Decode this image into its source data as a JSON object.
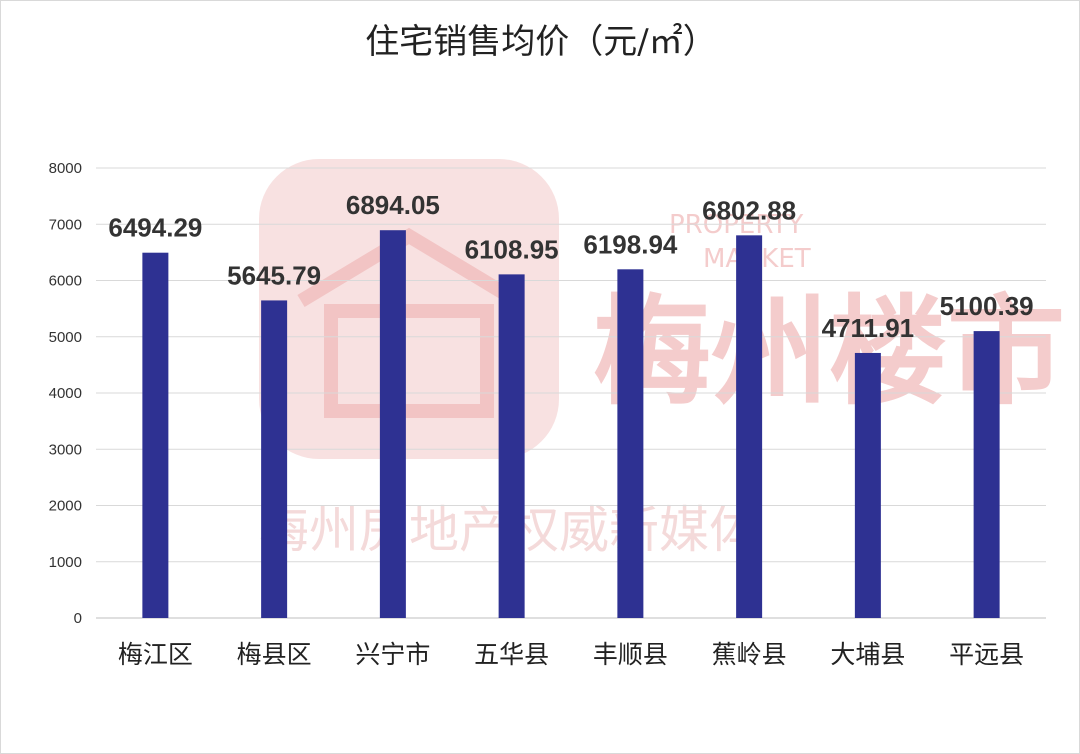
{
  "watermark": {
    "brand": "梅州楼市",
    "english": [
      "PROPERTY",
      "MARKET"
    ],
    "tagline": "梅州房地产权威新媒体",
    "color": "#f2c8c8"
  },
  "chart_data": {
    "type": "bar",
    "title": "住宅销售均价（元/㎡）",
    "categories": [
      "梅江区",
      "梅县区",
      "兴宁市",
      "五华县",
      "丰顺县",
      "蕉岭县",
      "大埔县",
      "平远县"
    ],
    "values": [
      6494.29,
      5645.79,
      6894.05,
      6108.95,
      6198.94,
      6802.88,
      4711.91,
      5100.39
    ],
    "value_labels": [
      "6494.29",
      "5645.79",
      "6894.05",
      "6108.95",
      "6198.94",
      "6802.88",
      "4711.91",
      "5100.39"
    ],
    "ylim": [
      0,
      8000
    ],
    "yticks": [
      "0",
      "1000",
      "2000",
      "3000",
      "4000",
      "5000",
      "6000",
      "7000",
      "8000"
    ],
    "grid": true,
    "legend": "none",
    "bar_color": "#2e3192"
  }
}
